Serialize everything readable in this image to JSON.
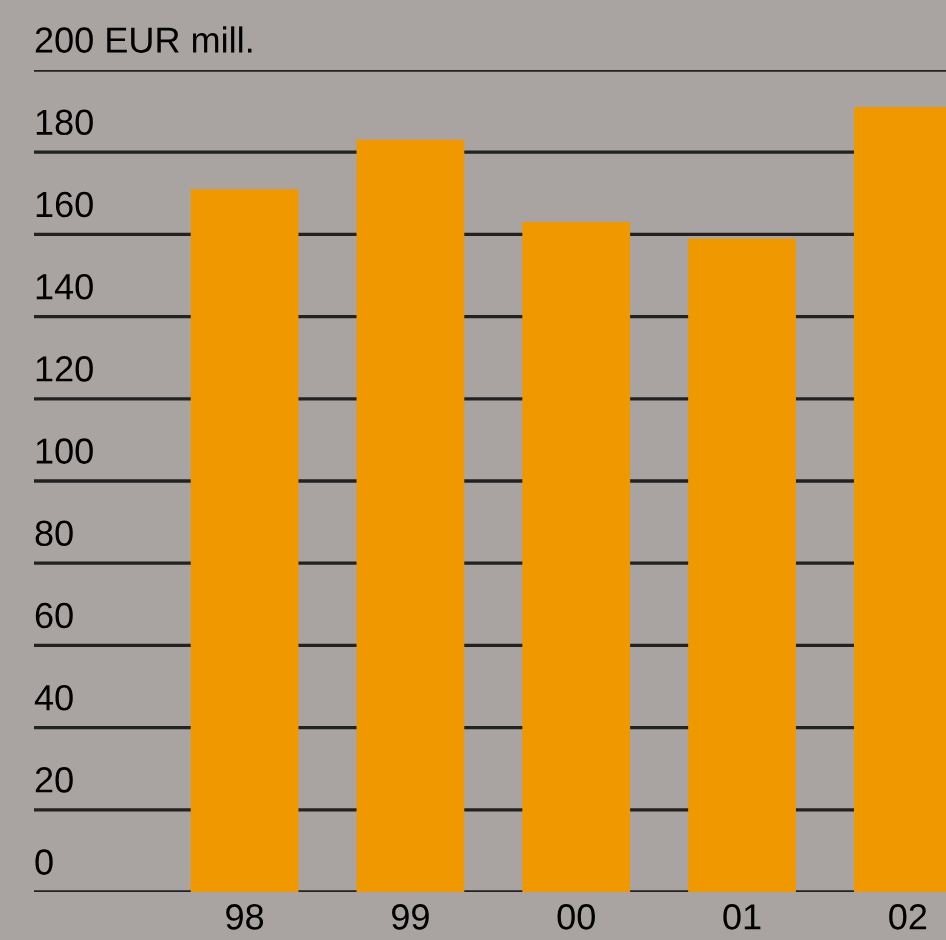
{
  "chart_data": {
    "type": "bar",
    "categories": [
      "98",
      "99",
      "00",
      "01",
      "02"
    ],
    "values": [
      171,
      183,
      163,
      159,
      191
    ],
    "color": "#f09800",
    "ylim": [
      0,
      200
    ],
    "yticks": [
      0,
      20,
      40,
      60,
      80,
      100,
      120,
      140,
      160,
      180,
      {
        "value": 200,
        "label": "200 EUR mill."
      }
    ],
    "grid": "y"
  }
}
